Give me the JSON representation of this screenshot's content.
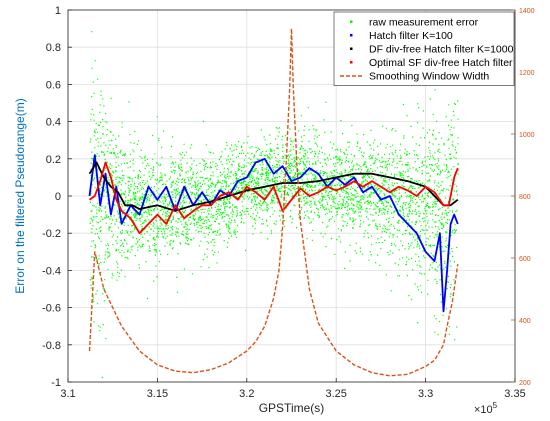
{
  "chart_data": {
    "type": "line",
    "xlabel": "GPSTime(s)",
    "ylabel": "Error on the filtered Pseudorange(m)",
    "x_exponent_label": "×10",
    "x_exponent_power": "5",
    "xlim": [
      310000,
      335000
    ],
    "ylim": [
      -1,
      1
    ],
    "y2lim": [
      200,
      1400
    ],
    "x_ticks": [
      310000,
      315000,
      320000,
      325000,
      330000,
      335000
    ],
    "x_tick_labels": [
      "3.1",
      "3.15",
      "3.2",
      "3.25",
      "3.3",
      "3.35"
    ],
    "y_ticks": [
      -1,
      -0.8,
      -0.6,
      -0.4,
      -0.2,
      0,
      0.2,
      0.4,
      0.6,
      0.8,
      1
    ],
    "y_tick_labels": [
      "-1",
      "-0.8",
      "-0.6",
      "-0.4",
      "-0.2",
      "0",
      "0.2",
      "0.4",
      "0.6",
      "0.8",
      "1"
    ],
    "y2_ticks": [
      200,
      400,
      600,
      800,
      1000,
      1200,
      1400
    ],
    "y2_tick_labels": [
      "200",
      "400",
      "600",
      "800",
      "1000",
      "1200",
      "1400"
    ],
    "grid": true,
    "legend_position": "top-right",
    "series": [
      {
        "name": "raw measurement error",
        "style": "dots",
        "color": "#00ff00",
        "axis": "left",
        "x_range": [
          311200,
          331800
        ],
        "envelope": {
          "x": [
            311200,
            312000,
            313000,
            314000,
            316000,
            318000,
            320000,
            322000,
            324000,
            326000,
            328000,
            330000,
            331000,
            331800
          ],
          "center": [
            0.05,
            0.0,
            -0.05,
            -0.05,
            -0.05,
            -0.05,
            0.05,
            0.1,
            0.08,
            0.03,
            0.0,
            -0.05,
            -0.1,
            0.1
          ],
          "spread": [
            0.75,
            0.5,
            0.35,
            0.3,
            0.25,
            0.25,
            0.2,
            0.2,
            0.2,
            0.25,
            0.3,
            0.4,
            0.5,
            0.7
          ]
        }
      },
      {
        "name": "Hatch filter K=100",
        "style": "line",
        "color": "#0000ff",
        "axis": "left",
        "x": [
          311200,
          311500,
          311800,
          312100,
          312400,
          312700,
          313000,
          313500,
          314000,
          314500,
          315000,
          315500,
          316000,
          316500,
          317000,
          317500,
          318000,
          318500,
          319000,
          319500,
          320000,
          320500,
          321000,
          321500,
          322000,
          322500,
          323000,
          323500,
          324000,
          324500,
          325000,
          325500,
          326000,
          326500,
          327000,
          327500,
          328000,
          328500,
          329000,
          329500,
          330000,
          330500,
          330800,
          331000,
          331200,
          331400,
          331600,
          331800
        ],
        "y": [
          0.0,
          0.22,
          -0.05,
          0.12,
          -0.1,
          0.05,
          -0.15,
          -0.05,
          -0.1,
          0.05,
          -0.02,
          0.05,
          -0.08,
          0.05,
          -0.05,
          0.02,
          -0.05,
          0.03,
          0.0,
          0.08,
          0.1,
          0.18,
          0.2,
          0.12,
          0.16,
          0.08,
          0.1,
          0.15,
          0.12,
          0.05,
          0.1,
          0.06,
          0.1,
          0.02,
          0.05,
          -0.02,
          0.0,
          -0.1,
          -0.15,
          -0.2,
          -0.3,
          -0.35,
          -0.2,
          -0.62,
          -0.4,
          -0.15,
          -0.1,
          -0.15
        ]
      },
      {
        "name": "DF div-free Hatch filter K=1000",
        "style": "line",
        "color": "#000000",
        "axis": "left",
        "x": [
          311200,
          311600,
          312000,
          312400,
          312800,
          313200,
          313600,
          314000,
          315000,
          316000,
          317000,
          318000,
          319000,
          320000,
          321000,
          322000,
          323000,
          324000,
          325000,
          326000,
          327000,
          328000,
          329000,
          330000,
          330500,
          331000,
          331400,
          331800
        ],
        "y": [
          0.12,
          0.18,
          0.1,
          0.05,
          0.02,
          -0.05,
          -0.05,
          -0.07,
          -0.05,
          -0.08,
          -0.05,
          -0.03,
          0.0,
          0.03,
          0.05,
          0.07,
          0.07,
          0.08,
          0.1,
          0.12,
          0.12,
          0.1,
          0.08,
          0.05,
          0.0,
          -0.05,
          -0.05,
          -0.02
        ]
      },
      {
        "name": "Optimal SF div-free Hatch filter",
        "style": "line",
        "color": "#ff0000",
        "axis": "left",
        "x": [
          311200,
          311500,
          311800,
          312100,
          312400,
          312700,
          313000,
          313500,
          314000,
          314500,
          315000,
          315500,
          316000,
          316500,
          317000,
          317500,
          318000,
          318500,
          319000,
          319500,
          320000,
          320500,
          321000,
          321500,
          322000,
          322500,
          323000,
          323500,
          324000,
          324500,
          325000,
          325500,
          326000,
          326500,
          327000,
          327500,
          328000,
          328500,
          329000,
          329500,
          330000,
          330500,
          331000,
          331300,
          331600,
          331800
        ],
        "y": [
          -0.02,
          0.0,
          0.08,
          0.18,
          0.1,
          -0.02,
          -0.08,
          -0.12,
          -0.2,
          -0.15,
          -0.1,
          -0.15,
          -0.05,
          -0.12,
          -0.08,
          -0.05,
          -0.05,
          0.0,
          0.02,
          -0.02,
          0.05,
          0.02,
          -0.02,
          0.05,
          -0.08,
          -0.02,
          0.04,
          0.0,
          0.02,
          0.05,
          0.03,
          0.05,
          0.08,
          0.05,
          0.08,
          0.05,
          0.02,
          0.05,
          0.03,
          0.0,
          0.05,
          0.02,
          -0.05,
          -0.05,
          0.1,
          0.15
        ]
      },
      {
        "name": "Smoothing Window Width",
        "style": "dashed",
        "color": "#d95319",
        "axis": "right",
        "x": [
          311200,
          311500,
          312000,
          313000,
          314000,
          315000,
          316000,
          317000,
          318000,
          319000,
          320000,
          320500,
          321000,
          321500,
          321800,
          322000,
          322200,
          322400,
          322500,
          322600,
          322800,
          323000,
          323500,
          324000,
          325000,
          326000,
          327000,
          328000,
          329000,
          330000,
          330500,
          331000,
          331200,
          331500,
          331800
        ],
        "y": [
          300,
          620,
          500,
          380,
          300,
          255,
          235,
          230,
          240,
          262,
          300,
          330,
          380,
          470,
          560,
          700,
          900,
          1150,
          1340,
          1150,
          900,
          720,
          500,
          390,
          300,
          255,
          230,
          220,
          225,
          250,
          270,
          320,
          380,
          460,
          580
        ]
      }
    ]
  }
}
